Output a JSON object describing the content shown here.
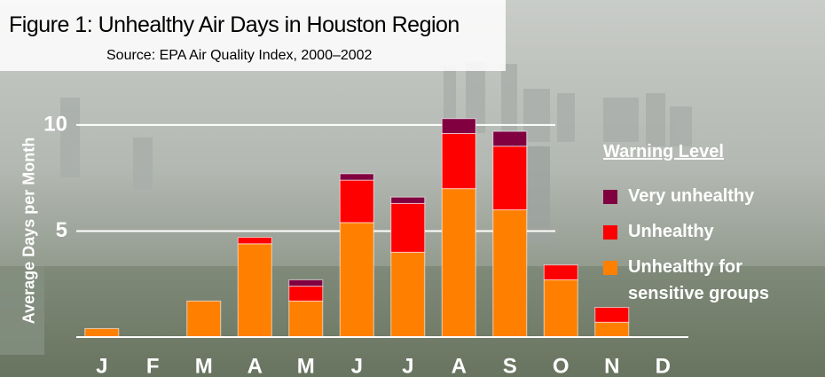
{
  "title": "Figure 1: Unhealthy Air Days in Houston Region",
  "subtitle": "Source: EPA Air Quality Index, 2000–2002",
  "chart_data": {
    "type": "stacked_bar",
    "y_label": "Average Days per Month",
    "legend_title": "Warning Level",
    "categories": [
      "J",
      "F",
      "M",
      "A",
      "M",
      "J",
      "J",
      "A",
      "S",
      "O",
      "N",
      "D"
    ],
    "series": [
      {
        "name": "Unhealthy for sensitive groups",
        "color": "#ff8000",
        "values": [
          0.4,
          0,
          1.7,
          4.4,
          1.7,
          5.4,
          4.0,
          7.0,
          6.0,
          2.7,
          0.7,
          0
        ]
      },
      {
        "name": "Unhealthy",
        "color": "#ff0000",
        "values": [
          0,
          0,
          0,
          0.3,
          0.7,
          2.0,
          2.3,
          2.6,
          3.0,
          0.7,
          0.7,
          0
        ]
      },
      {
        "name": "Very unhealthy",
        "color": "#800040",
        "values": [
          0,
          0,
          0,
          0,
          0.3,
          0.3,
          0.3,
          0.7,
          0.7,
          0,
          0,
          0
        ]
      }
    ],
    "ylim": [
      0,
      11
    ],
    "yticks": [
      5,
      10
    ],
    "grid": true
  }
}
